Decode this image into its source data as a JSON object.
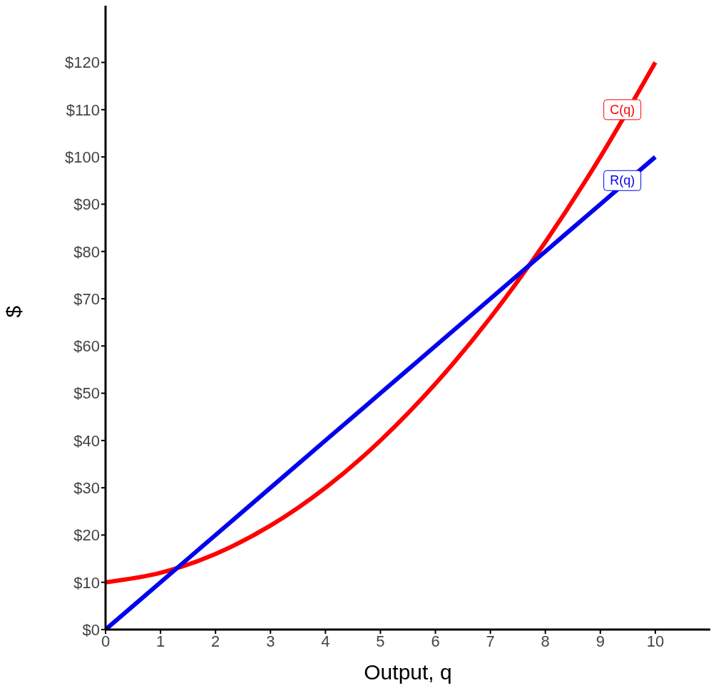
{
  "chart_data": {
    "type": "line",
    "xlabel": "Output, q",
    "ylabel": "$",
    "series": [
      {
        "color": "#ff0000",
        "x": [
          0,
          1,
          2,
          3,
          4,
          5,
          6,
          7,
          8,
          9,
          10
        ],
        "values": [
          10,
          12,
          16,
          22,
          30,
          40,
          52,
          66,
          82,
          100,
          120
        ]
      },
      {
        "color": "#0000ee",
        "x": [
          0,
          1,
          2,
          3,
          4,
          5,
          6,
          7,
          8,
          9,
          10
        ],
        "values": [
          0,
          10,
          20,
          30,
          40,
          50,
          60,
          70,
          80,
          90,
          100
        ]
      }
    ],
    "annotations": [
      {
        "text": "C(q)",
        "x": 9.4,
        "y": 110
      },
      {
        "text": "R(q)",
        "x": 9.4,
        "y": 95
      }
    ],
    "xlim": [
      0,
      11
    ],
    "xticks": [
      0,
      1,
      2,
      3,
      4,
      5,
      6,
      7,
      8,
      9,
      10
    ],
    "ylim": [
      0,
      132
    ],
    "yticks": [
      {
        "value": 0,
        "label": "$0"
      },
      {
        "value": 10,
        "label": "$10"
      },
      {
        "value": 20,
        "label": "$20"
      },
      {
        "value": 30,
        "label": "$30"
      },
      {
        "value": 40,
        "label": "$40"
      },
      {
        "value": 50,
        "label": "$50"
      },
      {
        "value": 60,
        "label": "$60"
      },
      {
        "value": 70,
        "label": "$70"
      },
      {
        "value": 80,
        "label": "$80"
      },
      {
        "value": 90,
        "label": "$90"
      },
      {
        "value": 100,
        "label": "$100"
      },
      {
        "value": 110,
        "label": "$110"
      },
      {
        "value": 120,
        "label": "$120"
      }
    ],
    "grid": false,
    "marker": "none",
    "line_style": "solid"
  }
}
